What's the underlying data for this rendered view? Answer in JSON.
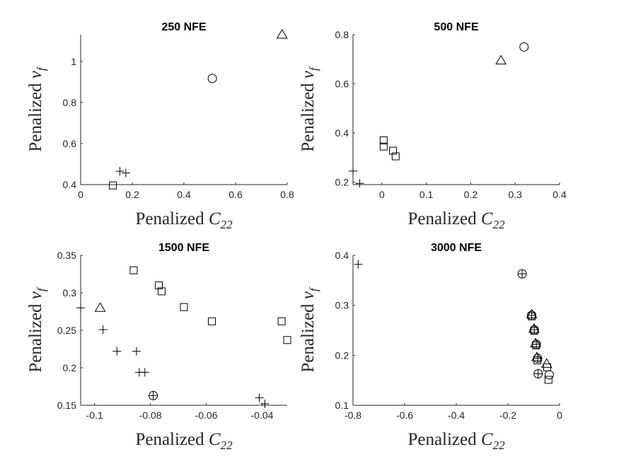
{
  "chart_data": [
    {
      "type": "scatter",
      "title": "250 NFE",
      "xlabel": {
        "text": "Penalized ",
        "sym": "C",
        "sub": "22"
      },
      "ylabel": {
        "text": "Penalized ",
        "sym": "v",
        "sub": "f"
      },
      "xlim": [
        0,
        0.8
      ],
      "ylim": [
        0.4,
        1.13
      ],
      "xticks": [
        0,
        0.2,
        0.4,
        0.6,
        0.8
      ],
      "xtick_labels": [
        "0",
        "0.2",
        "0.4",
        "0.6",
        "0.8"
      ],
      "yticks": [
        0.4,
        0.6,
        0.8,
        1.0
      ],
      "ytick_labels": [
        "0.4",
        "0.6",
        "0.8",
        "1"
      ],
      "series": [
        {
          "marker": "plus",
          "points": [
            [
              0.152,
              0.465
            ],
            [
              0.175,
              0.457
            ]
          ]
        },
        {
          "marker": "square",
          "points": [
            [
              0.125,
              0.396
            ]
          ]
        },
        {
          "marker": "circle",
          "points": [
            [
              0.51,
              0.917
            ]
          ]
        },
        {
          "marker": "triangle",
          "points": [
            [
              0.78,
              1.13
            ]
          ]
        }
      ]
    },
    {
      "type": "scatter",
      "title": "500 NFE",
      "xlabel": {
        "text": "Penalized ",
        "sym": "C",
        "sub": "22"
      },
      "ylabel": {
        "text": "Penalized ",
        "sym": "v",
        "sub": "f"
      },
      "xlim": [
        -0.065,
        0.4
      ],
      "ylim": [
        0.19,
        0.8
      ],
      "xticks": [
        0,
        0.1,
        0.2,
        0.3,
        0.4
      ],
      "xtick_labels": [
        "0",
        "0.1",
        "0.2",
        "0.3",
        "0.4"
      ],
      "yticks": [
        0.2,
        0.4,
        0.6,
        0.8
      ],
      "ytick_labels": [
        "0.2",
        "0.4",
        "0.6",
        "0.8"
      ],
      "series": [
        {
          "marker": "plus",
          "points": [
            [
              -0.065,
              0.245
            ],
            [
              -0.05,
              0.195
            ]
          ]
        },
        {
          "marker": "square",
          "points": [
            [
              0.004,
              0.37
            ],
            [
              0.004,
              0.345
            ],
            [
              0.025,
              0.328
            ],
            [
              0.031,
              0.305
            ]
          ]
        },
        {
          "marker": "circle",
          "points": [
            [
              0.32,
              0.75
            ]
          ]
        },
        {
          "marker": "triangle",
          "points": [
            [
              0.268,
              0.695
            ]
          ]
        }
      ]
    },
    {
      "type": "scatter",
      "title": "1500 NFE",
      "xlabel": {
        "text": "Penalized ",
        "sym": "C",
        "sub": "22"
      },
      "ylabel": {
        "text": "Penalized ",
        "sym": "v",
        "sub": "f"
      },
      "xlim": [
        -0.105,
        -0.031
      ],
      "ylim": [
        0.15,
        0.35
      ],
      "xticks": [
        -0.1,
        -0.08,
        -0.06,
        -0.04
      ],
      "xtick_labels": [
        "-0.1",
        "-0.08",
        "-0.06",
        "-0.04"
      ],
      "yticks": [
        0.15,
        0.2,
        0.25,
        0.3,
        0.35
      ],
      "ytick_labels": [
        "0.15",
        "0.2",
        "0.25",
        "0.3",
        "0.35"
      ],
      "series": [
        {
          "marker": "plus",
          "points": [
            [
              -0.105,
              0.28
            ],
            [
              -0.097,
              0.251
            ],
            [
              -0.092,
              0.222
            ],
            [
              -0.085,
              0.222
            ],
            [
              -0.084,
              0.194
            ],
            [
              -0.082,
              0.194
            ],
            [
              -0.041,
              0.16
            ],
            [
              -0.039,
              0.152
            ]
          ]
        },
        {
          "marker": "square",
          "points": [
            [
              -0.086,
              0.33
            ],
            [
              -0.077,
              0.31
            ],
            [
              -0.076,
              0.302
            ],
            [
              -0.068,
              0.281
            ],
            [
              -0.058,
              0.262
            ],
            [
              -0.033,
              0.262
            ],
            [
              -0.031,
              0.237
            ]
          ]
        },
        {
          "marker": "circle-plus",
          "points": [
            [
              -0.079,
              0.163
            ]
          ]
        },
        {
          "marker": "triangle",
          "points": [
            [
              -0.098,
              0.28
            ]
          ]
        }
      ]
    },
    {
      "type": "scatter",
      "title": "3000 NFE",
      "xlabel": {
        "text": "Penalized ",
        "sym": "C",
        "sub": "22"
      },
      "ylabel": {
        "text": "Penalized ",
        "sym": "v",
        "sub": "f"
      },
      "xlim": [
        -0.8,
        0
      ],
      "ylim": [
        0.1,
        0.4
      ],
      "xticks": [
        -0.8,
        -0.6,
        -0.4,
        -0.2,
        0
      ],
      "xtick_labels": [
        "-0.8",
        "-0.6",
        "-0.4",
        "-0.2",
        "0"
      ],
      "yticks": [
        0.1,
        0.2,
        0.3,
        0.4
      ],
      "ytick_labels": [
        "0.1",
        "0.2",
        "0.3",
        "0.4"
      ],
      "series": [
        {
          "marker": "plus",
          "points": [
            [
              -0.78,
              0.382
            ]
          ]
        },
        {
          "marker": "circle-plus",
          "points": [
            [
              -0.145,
              0.363
            ],
            [
              -0.108,
              0.28
            ],
            [
              -0.098,
              0.251
            ],
            [
              -0.09,
              0.222
            ],
            [
              -0.085,
              0.194
            ],
            [
              -0.083,
              0.163
            ]
          ]
        },
        {
          "marker": "triangle",
          "points": [
            [
              -0.108,
              0.282
            ],
            [
              -0.099,
              0.253
            ],
            [
              -0.093,
              0.224
            ],
            [
              -0.088,
              0.196
            ],
            [
              -0.05,
              0.183
            ]
          ]
        },
        {
          "marker": "square",
          "points": [
            [
              -0.108,
              0.278
            ],
            [
              -0.098,
              0.249
            ],
            [
              -0.091,
              0.22
            ],
            [
              -0.086,
              0.19
            ],
            [
              -0.048,
              0.176
            ],
            [
              -0.043,
              0.151
            ]
          ]
        },
        {
          "marker": "circle",
          "points": [
            [
              -0.04,
              0.161
            ]
          ]
        }
      ]
    }
  ]
}
